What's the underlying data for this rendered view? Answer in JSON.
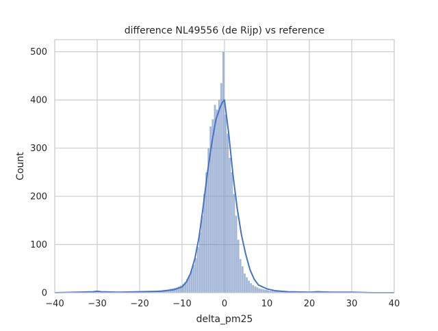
{
  "chart_data": {
    "type": "bar",
    "title": "difference NL49556 (de Rijp) vs reference",
    "xlabel": "delta_pm25",
    "ylabel": "Count",
    "xlim": [
      -40,
      40
    ],
    "ylim": [
      0,
      525
    ],
    "x_ticks": [
      -40,
      -30,
      -20,
      -10,
      0,
      10,
      20,
      30,
      40
    ],
    "y_ticks": [
      0,
      100,
      200,
      300,
      400,
      500
    ],
    "x_tick_labels": [
      "−40",
      "−30",
      "−20",
      "−10",
      "0",
      "10",
      "20",
      "30",
      "40"
    ],
    "y_tick_labels": [
      "0",
      "100",
      "200",
      "300",
      "400",
      "500"
    ],
    "grid": true,
    "bin_width": 0.5,
    "bin_starts": [
      -37,
      -36.5,
      -36,
      -35.5,
      -35,
      -34.5,
      -34,
      -33.5,
      -33,
      -32.5,
      -32,
      -31.5,
      -31,
      -30.5,
      -30,
      -29.5,
      -29,
      -28.5,
      -28,
      -27.5,
      -27,
      -26.5,
      -26,
      -25.5,
      -25,
      -24.5,
      -24,
      -23.5,
      -23,
      -22.5,
      -22,
      -21.5,
      -21,
      -20.5,
      -20,
      -19.5,
      -19,
      -18.5,
      -18,
      -17.5,
      -17,
      -16.5,
      -16,
      -15.5,
      -15,
      -14.5,
      -14,
      -13.5,
      -13,
      -12.5,
      -12,
      -11.5,
      -11,
      -10.5,
      -10,
      -9.5,
      -9,
      -8.5,
      -8,
      -7.5,
      -7,
      -6.5,
      -6,
      -5.5,
      -5,
      -4.5,
      -4,
      -3.5,
      -3,
      -2.5,
      -2,
      -1.5,
      -1,
      -0.5,
      0,
      0.5,
      1,
      1.5,
      2,
      2.5,
      3,
      3.5,
      4,
      4.5,
      5,
      5.5,
      6,
      6.5,
      7,
      7.5,
      8,
      8.5,
      9,
      9.5,
      10,
      10.5,
      11,
      11.5,
      12,
      12.5,
      13,
      13.5,
      14,
      14.5,
      15,
      15.5,
      16,
      16.5,
      17,
      17.5,
      18,
      18.5,
      19,
      19.5,
      20,
      20.5,
      21,
      21.5,
      22,
      22.5,
      23,
      23.5,
      24,
      24.5,
      25,
      25.5,
      26,
      26.5,
      27,
      27.5,
      28,
      28.5,
      29,
      29.5,
      30,
      30.5,
      31,
      31.5,
      32,
      32.5,
      33,
      33.5,
      34,
      34.5,
      35,
      35.5,
      36,
      36.5,
      37
    ],
    "counts": [
      1,
      1,
      1,
      1,
      1,
      1,
      1,
      1,
      1,
      1,
      1,
      2,
      2,
      3,
      4,
      3,
      2,
      1,
      1,
      1,
      1,
      1,
      1,
      1,
      1,
      1,
      1,
      1,
      1,
      1,
      1,
      2,
      2,
      3,
      3,
      2,
      2,
      2,
      3,
      3,
      3,
      4,
      4,
      5,
      5,
      6,
      6,
      7,
      8,
      9,
      10,
      11,
      13,
      15,
      18,
      22,
      28,
      36,
      46,
      58,
      72,
      95,
      125,
      160,
      205,
      250,
      300,
      345,
      360,
      390,
      380,
      400,
      435,
      500,
      370,
      330,
      280,
      250,
      205,
      160,
      110,
      70,
      55,
      40,
      32,
      25,
      20,
      16,
      13,
      11,
      9,
      8,
      7,
      6,
      5,
      4,
      4,
      3,
      3,
      3,
      2,
      2,
      2,
      2,
      2,
      2,
      1,
      1,
      1,
      1,
      1,
      1,
      1,
      1,
      1,
      2,
      2,
      2,
      2,
      1,
      1,
      1,
      1,
      1,
      1,
      1,
      1,
      1,
      1,
      1,
      1,
      1,
      1,
      1,
      1,
      1,
      1,
      1,
      1,
      1,
      1,
      1,
      1,
      1,
      1,
      1,
      1,
      1,
      1
    ],
    "kde_x": [
      -40,
      -35,
      -31,
      -30,
      -29,
      -25,
      -20,
      -15,
      -12,
      -10,
      -9,
      -8,
      -7,
      -6,
      -5,
      -4,
      -3,
      -2,
      -1,
      -0.5,
      0,
      1,
      2,
      3,
      4,
      5,
      6,
      7,
      8,
      10,
      12,
      15,
      20,
      22,
      25,
      30,
      35,
      40
    ],
    "kde_y": [
      0,
      1,
      2,
      3,
      2,
      1,
      2,
      3,
      6,
      12,
      22,
      40,
      70,
      115,
      180,
      250,
      310,
      360,
      385,
      395,
      400,
      330,
      245,
      175,
      120,
      80,
      48,
      28,
      16,
      8,
      4,
      2,
      1,
      2,
      1,
      1,
      0,
      0
    ],
    "bar_color": "#4c72b0",
    "kde_color": "#4472c4"
  }
}
